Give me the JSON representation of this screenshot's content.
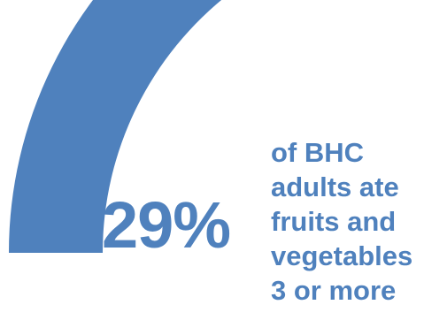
{
  "chart_data": {
    "type": "pie",
    "style": "gauge-arc",
    "value_percent": 29,
    "value_label": "29%",
    "caption_lines": [
      "of BHC",
      "adults ate",
      "fruits and",
      "vegetables",
      "3 or more"
    ],
    "colors": {
      "arc": "#4f81bd",
      "text": "#4f81bd",
      "background": "#ffffff"
    }
  }
}
